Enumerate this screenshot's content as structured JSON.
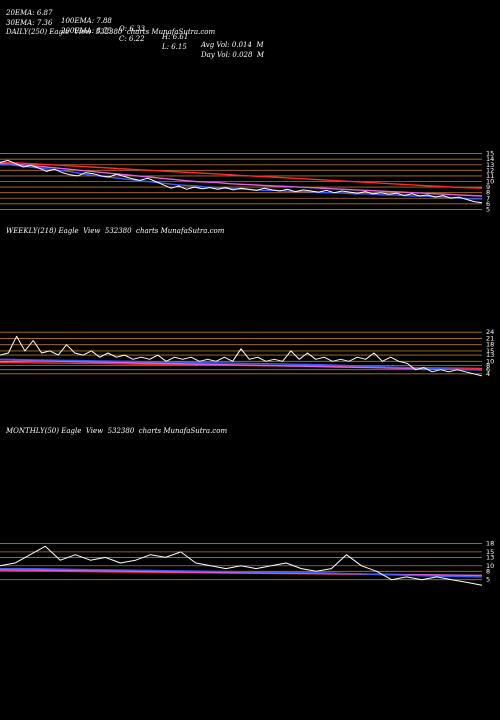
{
  "header": {
    "row1": [
      "20EMA: 6.87",
      "100EMA: 7.88",
      "O: 6.33",
      "H: 6.61",
      "Avg Vol: 0.014  M"
    ],
    "row2": [
      "30EMA: 7.36",
      "200EMA: 8.75",
      "C: 6.22",
      "L: 6.15",
      "Day Vol: 0.028  M"
    ]
  },
  "colors": {
    "background": "#000000",
    "price": "#ffffff",
    "ema_short": "#3b5bff",
    "ema_mid": "#e060e0",
    "ema_long": "#ff2a2a",
    "level_lines": "#b8761f"
  },
  "chart_data": [
    {
      "type": "line",
      "title": "DAILY(250) Eagle  View  532380  charts MunafaSutra.com",
      "y_ticks": [
        "15",
        "14",
        "13",
        "12",
        "11",
        "10",
        "9",
        "8",
        "7",
        "6",
        "5"
      ],
      "ylim": [
        4,
        16
      ],
      "series": [
        {
          "values": [
            13.4,
            13.8,
            13.2,
            12.6,
            12.9,
            12.4,
            11.8,
            12.2,
            11.6,
            11.2,
            11.0,
            11.6,
            11.4,
            11.0,
            10.8,
            11.3,
            10.9,
            10.5,
            10.2,
            10.6,
            10.0,
            9.4,
            8.8,
            9.2,
            8.6,
            9.0,
            8.7,
            8.9,
            8.6,
            8.9,
            8.5,
            8.8,
            8.6,
            8.4,
            8.8,
            8.5,
            8.3,
            8.6,
            8.2,
            8.5,
            8.3,
            8.1,
            8.4,
            8.0,
            8.3,
            8.1,
            7.9,
            8.2,
            7.8,
            8.0,
            7.7,
            7.9,
            7.5,
            7.8,
            7.4,
            7.6,
            7.2,
            7.5,
            7.0,
            7.2,
            6.8,
            6.4,
            6.2
          ]
        },
        {
          "values": [
            13.0,
            13.0,
            12.8,
            12.6,
            12.4,
            12.2,
            12.0,
            11.8,
            11.5,
            11.2,
            11.0,
            10.8,
            10.6,
            10.4,
            10.2,
            10.0,
            9.8,
            9.6,
            9.4,
            9.3,
            9.2,
            9.0,
            8.9,
            8.8,
            8.7,
            8.6,
            8.5,
            8.4,
            8.4,
            8.3,
            8.2,
            8.2,
            8.1,
            8.0,
            8.0,
            7.9,
            7.8,
            7.8,
            7.7,
            7.6,
            7.6,
            7.5,
            7.4,
            7.4,
            7.3,
            7.2,
            7.1,
            7.0,
            6.9,
            6.9
          ]
        },
        {
          "values": [
            13.2,
            13.1,
            13.0,
            12.8,
            12.6,
            12.4,
            12.2,
            12.0,
            11.8,
            11.6,
            11.4,
            11.2,
            11.0,
            10.8,
            10.6,
            10.4,
            10.2,
            10.0,
            9.9,
            9.8,
            9.6,
            9.5,
            9.4,
            9.3,
            9.2,
            9.1,
            9.0,
            8.9,
            8.8,
            8.7,
            8.6,
            8.5,
            8.4,
            8.3,
            8.2,
            8.1,
            8.0,
            7.9,
            7.8,
            7.7,
            7.6,
            7.5,
            7.4
          ]
        },
        {
          "values": [
            13.5,
            13.3,
            13.1,
            12.9,
            12.7,
            12.5,
            12.3,
            12.1,
            11.9,
            11.7,
            11.5,
            11.3,
            11.1,
            10.9,
            10.7,
            10.5,
            10.3,
            10.1,
            9.9,
            9.7,
            9.5,
            9.3,
            9.1,
            8.9,
            8.8
          ]
        }
      ]
    },
    {
      "type": "line",
      "title": "WEEKLY(218) Eagle  View  532380  charts MunafaSutra.com",
      "y_ticks": [
        "24",
        "21",
        "18",
        "15",
        "13",
        "10",
        "8",
        "6",
        "4"
      ],
      "ylim": [
        2,
        26
      ],
      "series": [
        {
          "values": [
            13,
            14,
            22,
            15,
            20,
            14,
            15,
            13,
            18,
            14,
            13,
            15,
            12,
            14,
            12,
            13,
            11,
            12,
            11,
            13,
            10,
            12,
            11,
            12,
            10,
            11,
            10,
            12,
            10,
            16,
            11,
            12,
            10,
            11,
            10,
            15,
            11,
            14,
            11,
            12,
            10,
            11,
            10,
            12,
            11,
            14,
            10,
            12,
            10,
            9,
            6,
            7,
            5,
            6,
            5,
            6,
            5,
            4,
            3
          ]
        },
        {
          "values": [
            11.0,
            10.9,
            10.8,
            10.7,
            10.6,
            10.5,
            10.4,
            10.3,
            10.2,
            10.1,
            10.0,
            9.9,
            9.8,
            9.7,
            9.6,
            9.5,
            9.4,
            9.3,
            9.2,
            9.1,
            9.0,
            8.9,
            8.8,
            8.7,
            8.6,
            8.5,
            8.4,
            8.2,
            8.0,
            7.8,
            7.6,
            7.4,
            7.2,
            7.0,
            6.8,
            6.6,
            6.4,
            6.2,
            6.0,
            5.8
          ]
        },
        {
          "values": [
            10.0,
            10.0,
            10.1,
            10.2,
            10.2,
            10.1,
            10.0,
            9.9,
            9.8,
            9.7,
            9.6,
            9.5,
            9.4,
            9.3,
            9.2,
            9.1,
            9.0,
            8.9,
            8.8,
            8.7,
            8.6,
            8.5,
            8.4,
            8.3,
            8.2,
            8.1,
            8.0,
            7.9,
            7.8,
            7.7,
            7.6,
            7.5,
            7.4,
            7.3,
            7.2,
            7.1,
            7.0,
            6.9,
            6.8,
            6.7,
            6.6,
            6.5,
            6.4,
            6.3,
            6.2,
            6.1,
            6.0,
            5.9
          ]
        },
        {
          "values": [
            9.5,
            9.4,
            9.3,
            9.2,
            9.1,
            9.0,
            8.9,
            8.8,
            8.7,
            8.6,
            8.5,
            8.4,
            8.3,
            8.2,
            8.1,
            8.0,
            7.9,
            7.8,
            7.7,
            7.6,
            7.5,
            7.4,
            7.3,
            7.2,
            7.1,
            7.0,
            6.9,
            6.8,
            6.7,
            6.6
          ]
        }
      ]
    },
    {
      "type": "line",
      "title": "MONTHLY(50) Eagle  View  532380  charts MunafaSutra.com",
      "y_ticks": [
        "18",
        "15",
        "13",
        "10",
        "8",
        "5"
      ],
      "ylim": [
        2,
        20
      ],
      "series": [
        {
          "values": [
            10,
            11,
            14,
            17,
            12,
            14,
            12,
            13,
            11,
            12,
            14,
            13,
            15,
            11,
            10,
            9,
            10,
            9,
            10,
            11,
            9,
            8,
            9,
            14,
            10,
            8,
            5,
            6,
            5,
            6,
            5,
            4,
            3
          ]
        },
        {
          "values": [
            9.0,
            9.0,
            8.9,
            8.8,
            8.7,
            8.6,
            8.5,
            8.4,
            8.3,
            8.2,
            8.1,
            8.0,
            7.9,
            7.8,
            7.7,
            7.6,
            7.5,
            7.4,
            7.2,
            7.0,
            6.8,
            6.6,
            6.4,
            6.2,
            6.1,
            6.0
          ]
        },
        {
          "values": [
            8.6,
            8.5,
            8.4,
            8.3,
            8.2,
            8.1,
            8.0,
            7.9,
            7.8,
            7.7,
            7.6,
            7.5,
            7.4,
            7.3,
            7.2,
            7.1,
            7.0,
            6.9,
            6.8,
            6.7,
            6.6,
            6.5
          ]
        },
        {
          "values": [
            8.2,
            8.1,
            8.0,
            7.9,
            7.8,
            7.7,
            7.6,
            7.5,
            7.4,
            7.3,
            7.2,
            7.1,
            7.0,
            6.9,
            6.8,
            6.7,
            6.6,
            6.5
          ]
        }
      ]
    }
  ]
}
